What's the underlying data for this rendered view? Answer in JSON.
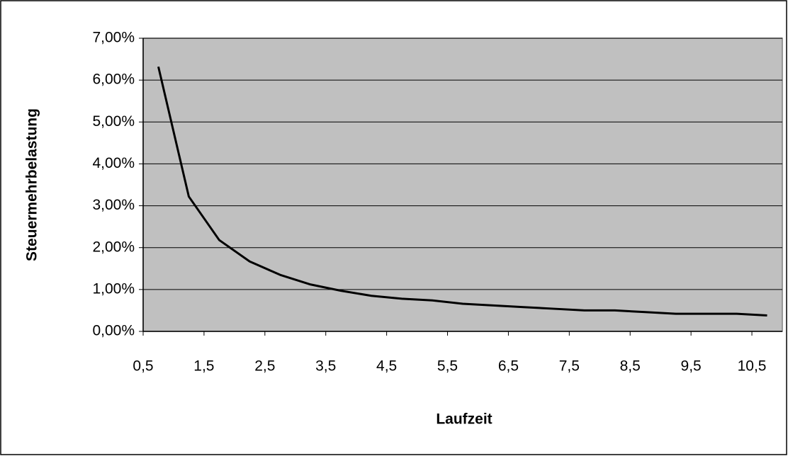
{
  "chart_data": {
    "type": "line",
    "x_label": "Laufzeit",
    "y_label": "Steuermehrbelastung",
    "x": [
      0.75,
      1.25,
      1.75,
      2.25,
      2.75,
      3.25,
      3.75,
      4.25,
      4.75,
      5.25,
      5.75,
      6.25,
      6.75,
      7.25,
      7.75,
      8.25,
      8.75,
      9.25,
      9.75,
      10.25,
      10.75
    ],
    "series": [
      {
        "color": "#000000",
        "values": [
          6.32,
          3.22,
          2.18,
          1.67,
          1.35,
          1.12,
          0.97,
          0.85,
          0.78,
          0.74,
          0.66,
          0.62,
          0.58,
          0.54,
          0.5,
          0.5,
          0.46,
          0.42,
          0.42,
          0.42,
          0.38
        ]
      }
    ],
    "xlim": [
      0.5,
      11
    ],
    "xticks": [
      {
        "value": 0.5,
        "label": "0,5"
      },
      {
        "value": 1.5,
        "label": "1,5"
      },
      {
        "value": 2.5,
        "label": "2,5"
      },
      {
        "value": 3.5,
        "label": "3,5"
      },
      {
        "value": 4.5,
        "label": "4,5"
      },
      {
        "value": 5.5,
        "label": "5,5"
      },
      {
        "value": 6.5,
        "label": "6,5"
      },
      {
        "value": 7.5,
        "label": "7,5"
      },
      {
        "value": 8.5,
        "label": "8,5"
      },
      {
        "value": 9.5,
        "label": "9,5"
      },
      {
        "value": 10.5,
        "label": "10,5"
      }
    ],
    "ylim": [
      0,
      7
    ],
    "yticks": [
      {
        "value": 0,
        "label": "0,00%"
      },
      {
        "value": 1,
        "label": "1,00%"
      },
      {
        "value": 2,
        "label": "2,00%"
      },
      {
        "value": 3,
        "label": "3,00%"
      },
      {
        "value": 4,
        "label": "4,00%"
      },
      {
        "value": 5,
        "label": "5,00%"
      },
      {
        "value": 6,
        "label": "6,00%"
      },
      {
        "value": 7,
        "label": "7,00%"
      }
    ],
    "grid": true,
    "plot_background": "#c0c0c0"
  }
}
